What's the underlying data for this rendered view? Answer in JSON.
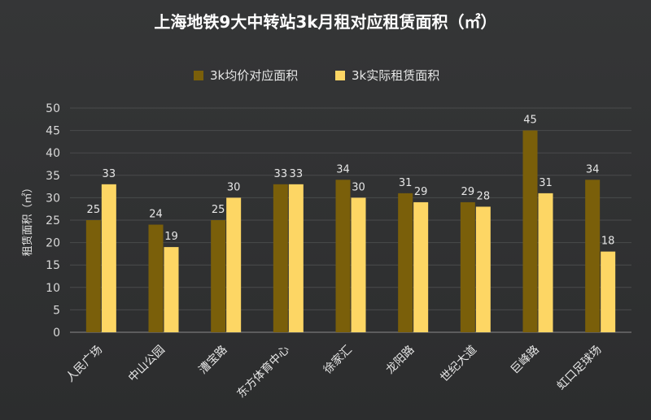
{
  "chart_data": {
    "type": "bar",
    "title": "上海地铁9大中转站3k月租对应租赁面积（㎡）",
    "ylabel": "租赁面积（㎡）",
    "xlabel": "",
    "ylim": [
      0,
      50
    ],
    "ytick_step": 5,
    "grid": true,
    "legend_position": "top",
    "categories": [
      "人民广场",
      "中山公园",
      "漕宝路",
      "东方体育中心",
      "徐家汇",
      "龙阳路",
      "世纪大道",
      "巨峰路",
      "虹口足球场"
    ],
    "series": [
      {
        "name": "3k均价对应面积",
        "color": "#7a5f0a",
        "values": [
          25,
          24,
          25,
          33,
          34,
          31,
          29,
          45,
          34
        ]
      },
      {
        "name": "3k实际租赁面积",
        "color": "#fdd664",
        "values": [
          33,
          19,
          30,
          33,
          30,
          29,
          28,
          31,
          18
        ]
      }
    ]
  }
}
